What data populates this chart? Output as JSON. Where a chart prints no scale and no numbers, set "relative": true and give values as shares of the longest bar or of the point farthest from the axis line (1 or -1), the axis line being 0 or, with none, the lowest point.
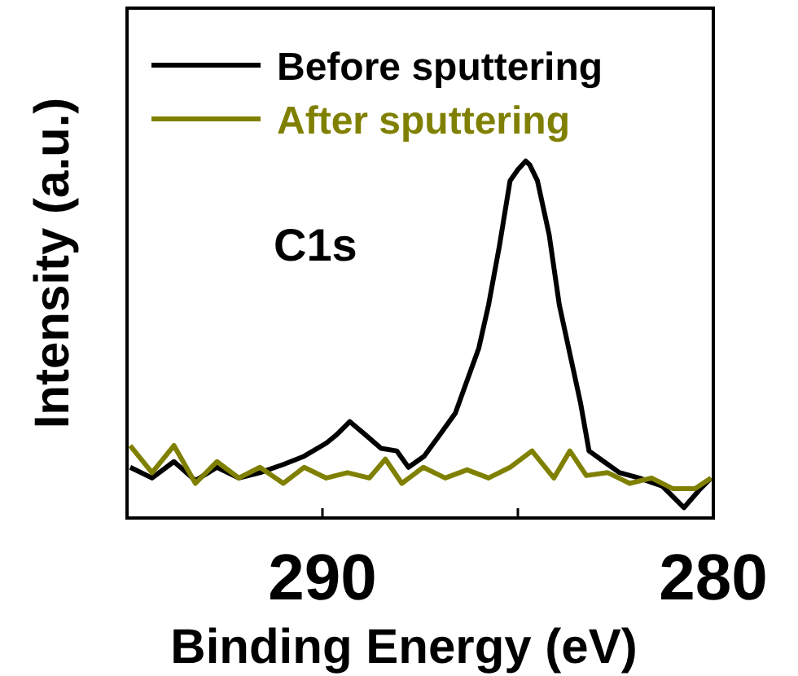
{
  "chart_data": {
    "type": "line",
    "relative": true,
    "xlabel": "Binding Energy (eV)",
    "ylabel": "Intensity (a.u.)",
    "annotations": [
      "C1s"
    ],
    "xlim": [
      295,
      280
    ],
    "xticks": [
      290,
      {
        "value": 285,
        "label": null
      },
      280
    ],
    "legend": "top",
    "line_style": "solid",
    "series": [
      {
        "name": "Before sputtering",
        "color": "#000000",
        "x": [
          294.92,
          294.36,
          293.8,
          293.25,
          292.7,
          292.14,
          291.6,
          291.0,
          290.47,
          289.9,
          289.64,
          289.3,
          288.9,
          288.5,
          288.1,
          287.8,
          287.4,
          287.0,
          286.6,
          286.3,
          286.0,
          285.75,
          285.47,
          285.2,
          285.0,
          284.8,
          284.7,
          284.5,
          284.2,
          283.94,
          283.67,
          283.4,
          283.18,
          282.8,
          282.4,
          281.9,
          281.3,
          280.75,
          280.33,
          280.06
        ],
        "values": [
          0.142,
          0.112,
          0.158,
          0.105,
          0.142,
          0.112,
          0.127,
          0.15,
          0.173,
          0.21,
          0.233,
          0.27,
          0.233,
          0.195,
          0.188,
          0.142,
          0.173,
          0.233,
          0.294,
          0.385,
          0.476,
          0.597,
          0.764,
          0.945,
          0.976,
          1,
          0.99,
          0.945,
          0.794,
          0.597,
          0.46,
          0.324,
          0.188,
          0.158,
          0.127,
          0.112,
          0.089,
          0.029,
          0.082,
          0.112
        ]
      },
      {
        "name": "After sputtering",
        "color": "#808000",
        "x": [
          294.92,
          294.36,
          293.8,
          293.25,
          292.7,
          292.14,
          291.6,
          291.0,
          290.47,
          289.9,
          289.36,
          288.8,
          288.39,
          287.97,
          287.42,
          286.86,
          286.3,
          285.75,
          285.2,
          284.64,
          284.08,
          283.67,
          283.25,
          282.7,
          282.14,
          281.58,
          281.03,
          280.47,
          280.06
        ],
        "values": [
          0.203,
          0.127,
          0.203,
          0.097,
          0.158,
          0.112,
          0.142,
          0.097,
          0.142,
          0.112,
          0.127,
          0.112,
          0.165,
          0.097,
          0.142,
          0.112,
          0.135,
          0.112,
          0.142,
          0.188,
          0.112,
          0.188,
          0.119,
          0.127,
          0.097,
          0.112,
          0.082,
          0.082,
          0.112
        ]
      }
    ]
  }
}
